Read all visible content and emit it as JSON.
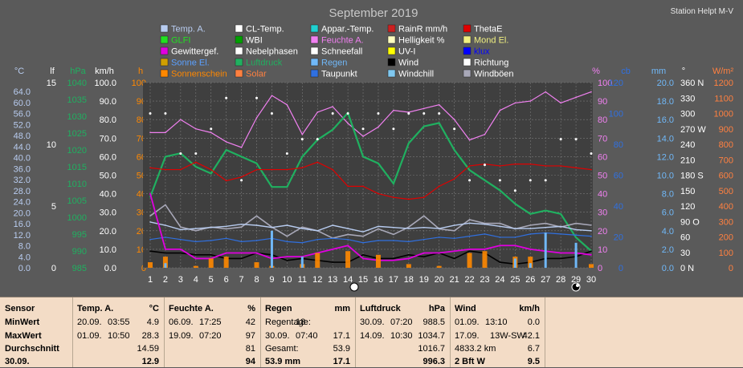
{
  "header": {
    "title": "September 2019",
    "station": "Station Helpt M-V"
  },
  "legend": [
    {
      "label": "Temp. A.",
      "color": "#b8ccf0",
      "text_color": "#b8ccf0"
    },
    {
      "label": "GLFI",
      "color": "#22e022",
      "text_color": "#22e022"
    },
    {
      "label": "Gewittergef.",
      "color": "#e000e0",
      "text_color": "#ffffff"
    },
    {
      "label": "Sonne El.",
      "color": "#d0a000",
      "text_color": "#5aa0ff"
    },
    {
      "label": "Sonnenschein",
      "color": "#ff8800",
      "text_color": "#ff8800"
    },
    {
      "label": "CL-Temp.",
      "color": "#ffffff",
      "text_color": "#ffffff"
    },
    {
      "label": "WBI",
      "color": "#00a000",
      "text_color": "#ffffff"
    },
    {
      "label": "Nebelphasen",
      "color": "#ffffff",
      "text_color": "#ffffff"
    },
    {
      "label": "Luftdruck",
      "color": "#20b060",
      "text_color": "#20b060"
    },
    {
      "label": "Solar",
      "color": "#ff8040",
      "text_color": "#ff8040"
    },
    {
      "label": "Appar.-Temp.",
      "color": "#20d0d0",
      "text_color": "#ffffff"
    },
    {
      "label": "Feuchte A.",
      "color": "#f080f0",
      "text_color": "#f080f0"
    },
    {
      "label": "Schneefall",
      "color": "#ffffff",
      "text_color": "#ffffff"
    },
    {
      "label": "Regen",
      "color": "#70b8f8",
      "text_color": "#70b8f8"
    },
    {
      "label": "Taupunkt",
      "color": "#3070e0",
      "text_color": "#ffffff"
    },
    {
      "label": "RainR mm/h",
      "color": "#cc2020",
      "text_color": "#ffffff"
    },
    {
      "label": "Helligkeit %",
      "color": "#ffffc0",
      "text_color": "#ffffff"
    },
    {
      "label": "UV-I",
      "color": "#ffff00",
      "text_color": "#ffffff"
    },
    {
      "label": "Wind",
      "color": "#000000",
      "text_color": "#ffffff"
    },
    {
      "label": "Windchill",
      "color": "#80c8f0",
      "text_color": "#ffffff"
    },
    {
      "label": "ThetaE",
      "color": "#e00000",
      "text_color": "#ffffff"
    },
    {
      "label": "Mond El.",
      "color": "#f0f080",
      "text_color": "#f0f080"
    },
    {
      "label": "klux",
      "color": "#0000ff",
      "text_color": "#0000ff"
    },
    {
      "label": "Richtung",
      "color": "#ffffff",
      "text_color": "#ffffff"
    },
    {
      "label": "Windböen",
      "color": "#a8a8b8",
      "text_color": "#ffffff"
    }
  ],
  "axes": {
    "left": [
      {
        "unit": "°C",
        "color": "#b8ccf0",
        "ticks": [
          "64.0",
          "60.0",
          "56.0",
          "52.0",
          "48.0",
          "44.0",
          "40.0",
          "36.0",
          "32.0",
          "28.0",
          "24.0",
          "20.0",
          "16.0",
          "12.0",
          "8.0",
          "4.0",
          "0.0"
        ]
      },
      {
        "unit": "lf",
        "color": "#ffffff",
        "ticks": [
          "15",
          "10",
          "5",
          "0"
        ]
      },
      {
        "unit": "hPa",
        "color": "#20b060",
        "ticks": [
          "1040",
          "1035",
          "1030",
          "1025",
          "1020",
          "1015",
          "1010",
          "1005",
          "1000",
          "995",
          "990",
          "985"
        ]
      },
      {
        "unit": "km/h",
        "color": "#ffffff",
        "ticks": [
          "100.0",
          "90.0",
          "80.0",
          "70.0",
          "60.0",
          "50.0",
          "40.0",
          "30.0",
          "20.0",
          "10.0",
          "0.0"
        ]
      },
      {
        "unit": "h",
        "color": "#ff8800",
        "ticks": [
          "100",
          "90",
          "80",
          "70",
          "60",
          "50",
          "40",
          "30",
          "20",
          "10",
          "0"
        ]
      }
    ],
    "right": [
      {
        "unit": "%",
        "color": "#f080f0",
        "ticks": [
          "100",
          "90",
          "80",
          "70",
          "60",
          "50",
          "40",
          "30",
          "20",
          "10",
          "0"
        ]
      },
      {
        "unit": "cb",
        "color": "#3070e0",
        "ticks": [
          "120",
          "100",
          "80",
          "60",
          "40",
          "20",
          "0"
        ]
      },
      {
        "unit": "mm",
        "color": "#70b8f8",
        "ticks": [
          "20.0",
          "18.0",
          "16.0",
          "14.0",
          "12.0",
          "10.0",
          "8.0",
          "6.0",
          "4.0",
          "2.0",
          "0.0"
        ]
      },
      {
        "unit": "°",
        "color": "#ffffff",
        "ticks": [
          "360 N",
          "330",
          "300",
          "270 W",
          "240",
          "210",
          "180 S",
          "150",
          "120",
          "90  O",
          "60",
          "30",
          "0    N"
        ]
      },
      {
        "unit": "W/m²",
        "color": "#ff8040",
        "ticks": [
          "1200",
          "1100",
          "1000",
          "900",
          "800",
          "700",
          "600",
          "500",
          "400",
          "300",
          "200",
          "100",
          "0"
        ]
      }
    ],
    "x_days": [
      "1",
      "2",
      "3",
      "4",
      "5",
      "6",
      "7",
      "8",
      "9",
      "10",
      "11",
      "12",
      "13",
      "14",
      "15",
      "16",
      "17",
      "18",
      "19",
      "20",
      "21",
      "22",
      "23",
      "24",
      "25",
      "26",
      "27",
      "28",
      "29",
      "30"
    ]
  },
  "chart_data": {
    "type": "line",
    "x": [
      1,
      2,
      3,
      4,
      5,
      6,
      7,
      8,
      9,
      10,
      11,
      12,
      13,
      14,
      15,
      16,
      17,
      18,
      19,
      20,
      21,
      22,
      23,
      24,
      25,
      26,
      27,
      28,
      29,
      30
    ],
    "series": [
      {
        "name": "Feuchte A.",
        "color": "#f080f0",
        "values": [
          73,
          73,
          80,
          75,
          73,
          68,
          65,
          81,
          93,
          88,
          72,
          84,
          87,
          78,
          71,
          76,
          85,
          84,
          86,
          88,
          80,
          69,
          72,
          85,
          89,
          90,
          95,
          89,
          92,
          95
        ]
      },
      {
        "name": "Luftdruck",
        "color": "#20b060",
        "values": [
          1006,
          1018,
          1019,
          1015,
          1013,
          1020,
          1018,
          1016,
          1009,
          1009,
          1018,
          1023,
          1026,
          1031,
          1018,
          1016,
          1010,
          1022,
          1027,
          1028,
          1020,
          1014,
          1011,
          1008,
          1004,
          1001,
          1002,
          1001,
          994,
          990
        ]
      },
      {
        "name": "ThetaE",
        "color": "#e00000",
        "values": [
          54,
          53,
          53,
          57,
          53,
          47,
          49,
          53,
          53,
          53,
          54,
          57,
          53,
          44,
          44,
          40,
          38,
          37,
          38,
          44,
          48,
          55,
          56,
          55,
          56,
          56,
          55,
          55,
          54,
          53
        ]
      },
      {
        "name": "Windböen",
        "color": "#a8a8b8",
        "values": [
          28,
          34,
          22,
          20,
          22,
          21,
          22,
          28,
          22,
          17,
          22,
          20,
          16,
          18,
          17,
          21,
          18,
          22,
          28,
          21,
          20,
          26,
          24,
          24,
          21,
          23,
          24,
          22,
          24,
          23
        ]
      },
      {
        "name": "Temp. A.",
        "color": "#b8ccf0",
        "values": [
          16.8,
          15.6,
          14.0,
          14.4,
          14.8,
          15.2,
          16.0,
          15.6,
          14.8,
          15.6,
          14.4,
          13.6,
          15.6,
          14.4,
          13.2,
          15.2,
          14.8,
          14.4,
          14.8,
          14.4,
          15.6,
          16.4,
          16.0,
          15.2,
          14.4,
          14.4,
          14.8,
          15.2,
          14.0,
          13.6
        ]
      },
      {
        "name": "Taupunkt",
        "color": "#3070e0",
        "values": [
          10.4,
          11.2,
          10.4,
          9.6,
          10.0,
          10.8,
          9.6,
          10.0,
          10.8,
          9.6,
          9.2,
          10.4,
          10.8,
          10.4,
          9.2,
          10.0,
          10.0,
          9.6,
          10.4,
          11.2,
          10.8,
          11.6,
          12.4,
          11.2,
          11.2,
          12.4,
          12.8,
          12.4,
          12.0,
          11.6
        ]
      },
      {
        "name": "Sonnenschein",
        "color": "#ff8800",
        "values": [
          3,
          6,
          0,
          1,
          5,
          6,
          0,
          3,
          1,
          0,
          2,
          8,
          0,
          9,
          0,
          7,
          0,
          2,
          0,
          1,
          0,
          8,
          9,
          0,
          6,
          6,
          0,
          0,
          0,
          2
        ]
      },
      {
        "name": "Regen",
        "color": "#70b8f8",
        "values": [
          0,
          0.5,
          0,
          0,
          0,
          0,
          0,
          0,
          4,
          0,
          1.2,
          0,
          0,
          0,
          0,
          0,
          0,
          0,
          0,
          0,
          0,
          0,
          0,
          0,
          1,
          0.5,
          3.8,
          0,
          2.7,
          0
        ]
      },
      {
        "name": "Wind",
        "color": "#000000",
        "values": [
          9,
          8,
          8,
          7,
          7,
          5,
          5,
          8,
          7,
          4,
          5,
          4,
          3,
          3,
          7,
          5,
          5,
          7,
          6,
          8,
          5,
          9,
          8,
          3,
          2,
          3,
          5,
          5,
          6,
          9
        ]
      },
      {
        "name": "Gewittergef.",
        "color": "#e000e0",
        "values": [
          40,
          10,
          10,
          5,
          5,
          8,
          8,
          8,
          5,
          6,
          6,
          8,
          10,
          12,
          5,
          4,
          4,
          5,
          8,
          8,
          9,
          10,
          10,
          12,
          12,
          10,
          9,
          8,
          8,
          7
        ]
      }
    ],
    "richtung_points": [
      300,
      300,
      222,
      222,
      270,
      330,
      170,
      330,
      300,
      222,
      250,
      250,
      300,
      300,
      270,
      300,
      270,
      300,
      300,
      300,
      270,
      170,
      200,
      170,
      150,
      170,
      170,
      250,
      250,
      222
    ],
    "richtung_deg_max": 360
  },
  "stats": {
    "columns": [
      {
        "header": "Sensor",
        "unit": "",
        "rows": [
          {
            "date": "MinWert"
          },
          {
            "date": "MaxWert"
          },
          {
            "date": "Durchschnitt"
          },
          {
            "date": "30.09."
          }
        ]
      },
      {
        "header": "Temp. A.",
        "unit": "°C",
        "rows": [
          {
            "date": "20.09.",
            "time": "03:55",
            "value": "4.9"
          },
          {
            "date": "01.09.",
            "time": "10:50",
            "value": "28.3"
          },
          {
            "date": "",
            "time": "",
            "value": "14.59"
          },
          {
            "date": "",
            "time": "",
            "value": "12.9"
          }
        ]
      },
      {
        "header": "Feuchte A.",
        "unit": "%",
        "rows": [
          {
            "date": "06.09.",
            "time": "17:25",
            "value": "42"
          },
          {
            "date": "19.09.",
            "time": "07:20",
            "value": "97"
          },
          {
            "date": "",
            "time": "",
            "value": "81"
          },
          {
            "date": "",
            "time": "",
            "value": "94"
          }
        ]
      },
      {
        "header": "Regen",
        "unit": "mm",
        "rows": [
          {
            "date": "Regentage:",
            "time": "18",
            "value": ""
          },
          {
            "date": "30.09.",
            "time": "07:40",
            "value": "17.1"
          },
          {
            "date": "Gesamt:",
            "time": "",
            "value": "53.9"
          },
          {
            "date": "53.9 mm",
            "time": "",
            "value": "17.1"
          }
        ]
      },
      {
        "header": "Luftdruck",
        "unit": "hPa",
        "rows": [
          {
            "date": "30.09.",
            "time": "07:20",
            "value": "988.5"
          },
          {
            "date": "14.09.",
            "time": "10:30",
            "value": "1034.7"
          },
          {
            "date": "",
            "time": "",
            "value": "1016.7"
          },
          {
            "date": "",
            "time": "",
            "value": "996.3"
          }
        ]
      },
      {
        "header": "Wind",
        "unit": "km/h",
        "rows": [
          {
            "date": "01.09.",
            "time": "13:10",
            "value": "0.0"
          },
          {
            "date": "17.09.",
            "time": "13W-SW",
            "value": "42.1"
          },
          {
            "date": "4833.2 km",
            "time": "",
            "value": "6.7"
          },
          {
            "date": "2 Bft W",
            "time": "",
            "value": "9.5"
          }
        ]
      }
    ]
  }
}
